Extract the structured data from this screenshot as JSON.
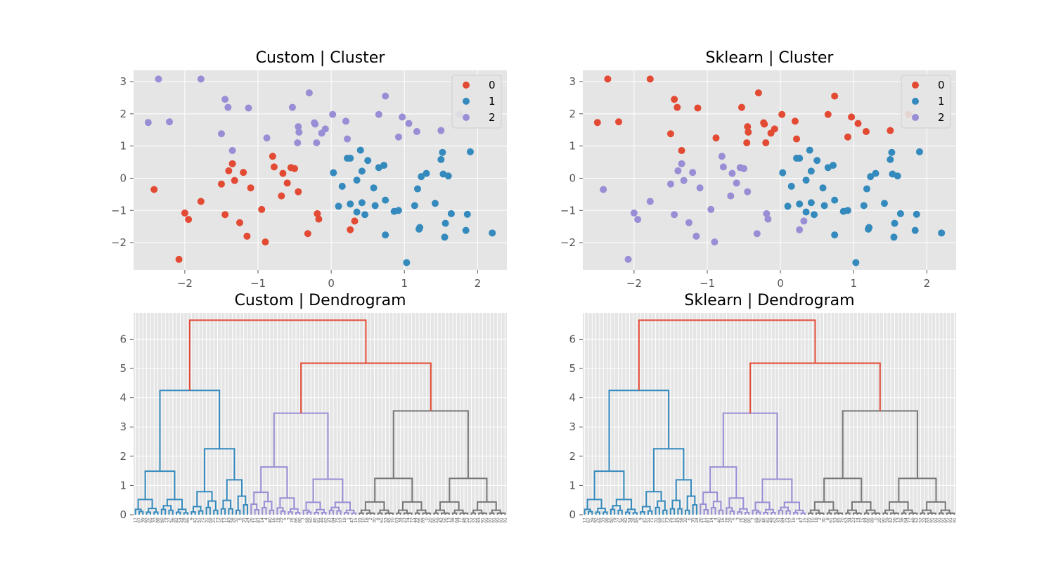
{
  "colors": {
    "c0": "#E24A33",
    "c1": "#348ABD",
    "c2": "#988ED5",
    "grey": "#777777",
    "bg": "#E5E5E5"
  },
  "chart_data": [
    {
      "id": "custom-cluster",
      "type": "scatter",
      "title": "Custom | Cluster",
      "xlim": [
        -2.7,
        2.4
      ],
      "ylim": [
        -2.85,
        3.35
      ],
      "xticks": [
        -2,
        -1,
        0,
        1,
        2
      ],
      "yticks": [
        -2,
        -1,
        0,
        1,
        2,
        3
      ],
      "legend_placement": "top-right",
      "legend": [
        "0",
        "1",
        "2"
      ],
      "labels": "custom"
    },
    {
      "id": "sklearn-cluster",
      "type": "scatter",
      "title": "Sklearn | Cluster",
      "xlim": [
        -2.7,
        2.4
      ],
      "ylim": [
        -2.85,
        3.35
      ],
      "xticks": [
        -2,
        -1,
        0,
        1,
        2
      ],
      "yticks": [
        -2,
        -1,
        0,
        1,
        2,
        3
      ],
      "legend_placement": "top-right",
      "legend": [
        "0",
        "1",
        "2"
      ],
      "labels": "sklearn"
    },
    {
      "id": "custom-dendrogram",
      "type": "dendrogram",
      "title": "Custom | Dendrogram",
      "ylim": [
        0,
        6.9
      ],
      "yticks": [
        0,
        1,
        2,
        3,
        4,
        5,
        6
      ]
    },
    {
      "id": "sklearn-dendrogram",
      "type": "dendrogram",
      "title": "Sklearn | Dendrogram",
      "ylim": [
        0,
        6.9
      ],
      "yticks": [
        0,
        1,
        2,
        3,
        4,
        5,
        6
      ]
    }
  ],
  "points": {
    "A": [
      [
        -2.42,
        -0.35
      ],
      [
        -2.08,
        -2.52
      ],
      [
        -2.0,
        -1.08
      ],
      [
        -1.95,
        -1.28
      ],
      [
        -1.78,
        -0.72
      ],
      [
        -1.5,
        -0.18
      ],
      [
        -1.45,
        -1.13
      ],
      [
        -1.4,
        0.23
      ],
      [
        -1.35,
        0.45
      ],
      [
        -1.32,
        -0.07
      ],
      [
        -1.25,
        -1.38
      ],
      [
        -1.2,
        0.18
      ],
      [
        -1.15,
        -1.8
      ],
      [
        -1.1,
        -0.3
      ],
      [
        -0.95,
        -0.97
      ],
      [
        -0.9,
        -1.98
      ],
      [
        -0.8,
        0.68
      ],
      [
        -0.78,
        0.35
      ],
      [
        -0.68,
        -0.55
      ],
      [
        -0.66,
        0.15
      ],
      [
        -0.6,
        -0.15
      ],
      [
        -0.55,
        0.33
      ],
      [
        -0.5,
        0.3
      ],
      [
        -0.45,
        -0.42
      ],
      [
        -0.32,
        -1.72
      ],
      [
        -0.19,
        -1.1
      ],
      [
        -0.17,
        -1.27
      ],
      [
        0.26,
        -1.6
      ],
      [
        0.32,
        -1.33
      ]
    ],
    "B": [
      [
        0.03,
        0.17
      ],
      [
        0.1,
        -0.87
      ],
      [
        0.15,
        -0.25
      ],
      [
        0.22,
        0.62
      ],
      [
        0.26,
        0.62
      ],
      [
        0.26,
        -0.8
      ],
      [
        0.35,
        -0.06
      ],
      [
        0.35,
        -1.05
      ],
      [
        0.4,
        0.87
      ],
      [
        0.42,
        0.22
      ],
      [
        0.42,
        -0.76
      ],
      [
        0.46,
        -1.13
      ],
      [
        0.5,
        0.55
      ],
      [
        0.58,
        -0.3
      ],
      [
        0.6,
        -0.85
      ],
      [
        0.65,
        0.33
      ],
      [
        0.72,
        0.4
      ],
      [
        0.74,
        -0.68
      ],
      [
        0.74,
        -1.76
      ],
      [
        0.86,
        -1.03
      ],
      [
        0.92,
        -1.0
      ],
      [
        1.03,
        -2.62
      ],
      [
        1.14,
        -0.85
      ],
      [
        1.18,
        -0.33
      ],
      [
        1.2,
        -1.58
      ],
      [
        1.21,
        -1.53
      ],
      [
        1.23,
        0.05
      ],
      [
        1.3,
        0.15
      ],
      [
        1.42,
        -0.78
      ],
      [
        1.5,
        0.58
      ],
      [
        1.52,
        0.8
      ],
      [
        1.53,
        0.13
      ],
      [
        1.55,
        -1.83
      ],
      [
        1.56,
        -1.4
      ],
      [
        1.6,
        0.07
      ],
      [
        1.64,
        -1.1
      ],
      [
        1.84,
        -1.62
      ],
      [
        1.86,
        -1.12
      ],
      [
        1.9,
        0.82
      ],
      [
        2.2,
        -1.7
      ]
    ],
    "C": [
      [
        -2.5,
        1.73
      ],
      [
        -2.36,
        3.08
      ],
      [
        -2.21,
        1.75
      ],
      [
        -1.78,
        3.08
      ],
      [
        -1.5,
        1.38
      ],
      [
        -1.45,
        2.45
      ],
      [
        -1.41,
        2.2
      ],
      [
        -1.35,
        0.86
      ],
      [
        -1.13,
        2.18
      ],
      [
        -0.88,
        1.25
      ],
      [
        -0.53,
        2.2
      ],
      [
        -0.46,
        1.1
      ],
      [
        -0.45,
        1.6
      ],
      [
        -0.44,
        1.43
      ],
      [
        -0.3,
        2.65
      ],
      [
        -0.23,
        1.72
      ],
      [
        -0.22,
        1.68
      ],
      [
        -0.2,
        1.1
      ],
      [
        -0.13,
        1.4
      ],
      [
        -0.08,
        1.53
      ],
      [
        0.02,
        1.98
      ],
      [
        0.2,
        1.77
      ],
      [
        0.22,
        1.22
      ],
      [
        0.65,
        1.98
      ],
      [
        0.74,
        2.55
      ],
      [
        0.92,
        1.28
      ],
      [
        0.97,
        1.9
      ],
      [
        1.06,
        1.7
      ],
      [
        1.17,
        1.45
      ],
      [
        1.5,
        1.48
      ],
      [
        1.75,
        1.98
      ]
    ]
  },
  "dendrogram": {
    "leaf_labels": [
      "17",
      "67",
      "39",
      "92",
      "65",
      "33",
      "88",
      "60",
      "79",
      "27",
      "36",
      "82",
      "54",
      "28",
      "85",
      "9",
      "41",
      "51",
      "71",
      "31",
      "69",
      "21",
      "73",
      "25",
      "12",
      "43",
      "58",
      "32",
      "6",
      "35",
      "24",
      "26",
      "11",
      "87",
      "14",
      "4",
      "40",
      "16",
      "78",
      "29",
      "5",
      "3",
      "76",
      "86",
      "80",
      "7",
      "68",
      "50",
      "46",
      "81",
      "49",
      "62",
      "37",
      "84",
      "75",
      "57",
      "19",
      "1",
      "47",
      "15",
      "55",
      "10",
      "18",
      "2",
      "30",
      "8",
      "61",
      "53",
      "45",
      "70",
      "63",
      "34",
      "23",
      "74",
      "72",
      "44",
      "66",
      "89",
      "0",
      "20",
      "90",
      "59",
      "42",
      "56",
      "13",
      "38",
      "64",
      "77",
      "48",
      "52",
      "52",
      "22",
      "83",
      "91",
      "91",
      "91",
      "91",
      "91",
      "91",
      "91"
    ],
    "cluster_sizes": [
      31,
      29,
      40
    ],
    "top_height": 6.65,
    "second_height": 5.18,
    "left_merge_height": 4.25,
    "mid_merge_height": 3.47,
    "right_merge_height": 3.55
  }
}
